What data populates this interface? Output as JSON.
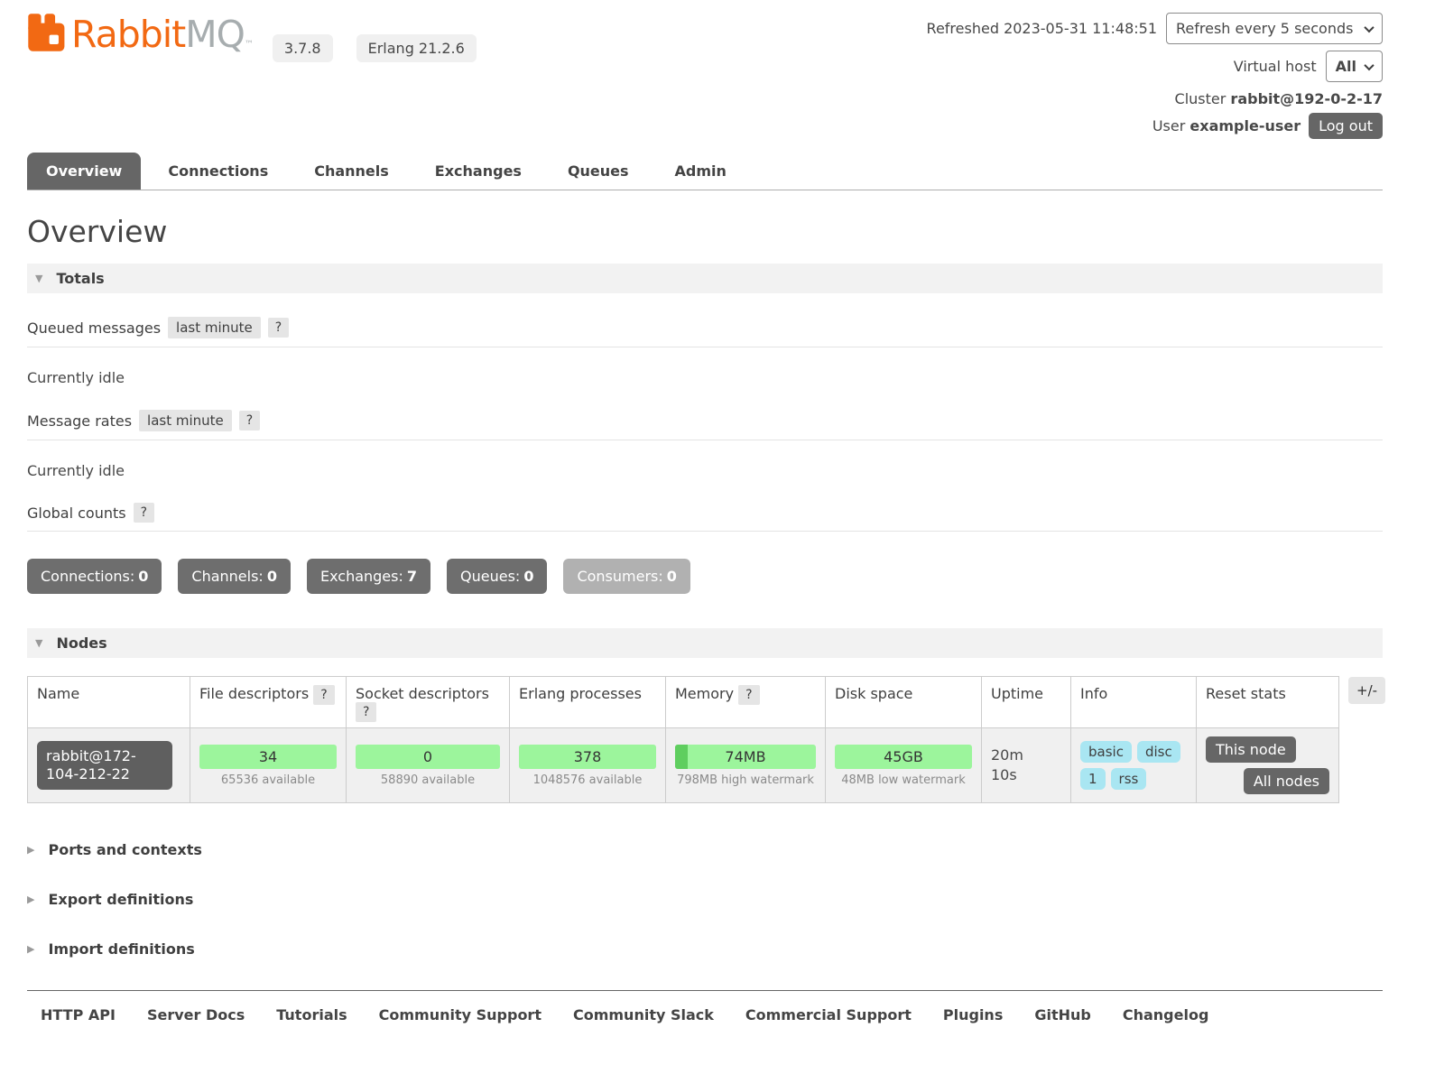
{
  "colors": {
    "brand_orange": "#f26913",
    "brand_gray": "#a7adaf",
    "dark_button": "#666666",
    "muted_badge": "#b1b1b1",
    "meter_green": "#9cf59c",
    "meter_green_used": "#5fce5f",
    "info_chip_cyan": "#a9e6f2"
  },
  "header": {
    "brand_rabbit": "Rabbit",
    "brand_mq": "MQ",
    "brand_tm": "™",
    "version_badge": "3.7.8",
    "erlang_badge": "Erlang 21.2.6",
    "refreshed_label": "Refreshed",
    "refreshed_time": "2023-05-31 11:48:51",
    "refresh_interval": "Refresh every 5 seconds",
    "virtual_host_label": "Virtual host",
    "virtual_host": "All",
    "cluster_label": "Cluster",
    "cluster_name": "rabbit@192-0-2-17",
    "user_label": "User",
    "user_name": "example-user",
    "logout": "Log out"
  },
  "tabs": [
    {
      "label": "Overview"
    },
    {
      "label": "Connections"
    },
    {
      "label": "Channels"
    },
    {
      "label": "Exchanges"
    },
    {
      "label": "Queues"
    },
    {
      "label": "Admin"
    }
  ],
  "page_title": "Overview",
  "misc": {
    "help": "?"
  },
  "totals": {
    "title": "Totals",
    "queued_label": "Queued messages",
    "queued_window": "last minute",
    "queued_status": "Currently idle",
    "rates_label": "Message rates",
    "rates_window": "last minute",
    "rates_status": "Currently idle",
    "global_label": "Global counts",
    "counts": [
      {
        "label": "Connections:",
        "value": "0"
      },
      {
        "label": "Channels:",
        "value": "0"
      },
      {
        "label": "Exchanges:",
        "value": "7"
      },
      {
        "label": "Queues:",
        "value": "0"
      },
      {
        "label": "Consumers:",
        "value": "0"
      }
    ]
  },
  "nodes": {
    "title": "Nodes",
    "columns": [
      "Name",
      "File descriptors",
      "Socket descriptors",
      "Erlang processes",
      "Memory",
      "Disk space",
      "Uptime",
      "Info",
      "Reset stats"
    ],
    "toggle_columns": "+/-",
    "row": {
      "name": "rabbit@172-104-212-22",
      "file_descriptors": {
        "value": "34",
        "sub": "65536 available"
      },
      "socket_descriptors": {
        "value": "0",
        "sub": "58890 available"
      },
      "erlang_processes": {
        "value": "378",
        "sub": "1048576 available"
      },
      "memory": {
        "value": "74MB",
        "sub": "798MB high watermark",
        "used_pct": 9
      },
      "disk_space": {
        "value": "45GB",
        "sub": "48MB low watermark"
      },
      "uptime": "20m 10s",
      "info_badges": [
        "basic",
        "disc",
        "1",
        "rss"
      ],
      "reset_this": "This node",
      "reset_all": "All nodes"
    }
  },
  "sections": [
    {
      "label": "Ports and contexts"
    },
    {
      "label": "Export definitions"
    },
    {
      "label": "Import definitions"
    }
  ],
  "footer": {
    "links": [
      "HTTP API",
      "Server Docs",
      "Tutorials",
      "Community Support",
      "Community Slack",
      "Commercial Support",
      "Plugins",
      "GitHub",
      "Changelog"
    ]
  }
}
